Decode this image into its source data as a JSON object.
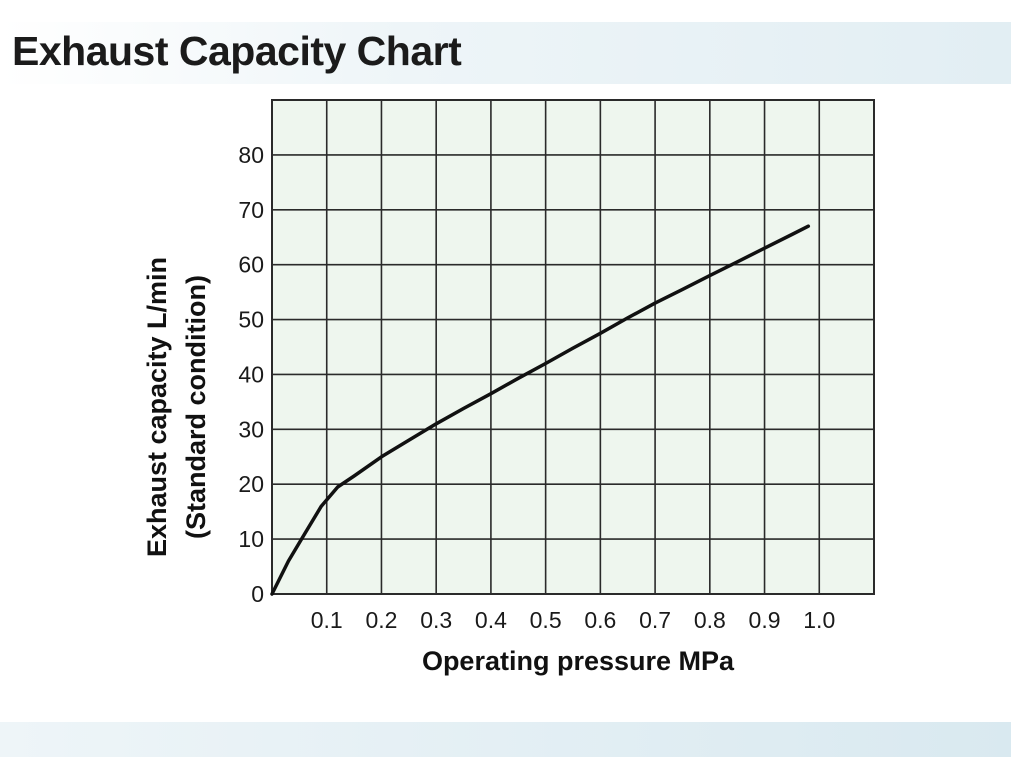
{
  "page": {
    "title": "Exhaust Capacity Chart"
  },
  "colors": {
    "plot_background": "#eef6ee",
    "grid": "#2a2a2a",
    "curve": "#111111"
  },
  "chart_data": {
    "type": "line",
    "title": "Exhaust Capacity Chart",
    "xlabel": "Operating pressure MPa",
    "ylabel": "Exhaust capacity L/min",
    "ylabel_sub": "(Standard condition)",
    "xlim": [
      0,
      1.1
    ],
    "ylim": [
      0,
      90
    ],
    "x_ticks": [
      0.1,
      0.2,
      0.3,
      0.4,
      0.5,
      0.6,
      0.7,
      0.8,
      0.9,
      1.0
    ],
    "x_tick_labels": [
      "0.1",
      "0.2",
      "0.3",
      "0.4",
      "0.5",
      "0.6",
      "0.7",
      "0.8",
      "0.9",
      "1.0"
    ],
    "y_ticks": [
      0,
      10,
      20,
      30,
      40,
      50,
      60,
      70,
      80
    ],
    "y_tick_labels": [
      "0",
      "10",
      "20",
      "30",
      "40",
      "50",
      "60",
      "70",
      "80"
    ],
    "grid": true,
    "legend": "none",
    "series": [
      {
        "x": [
          0,
          0.03,
          0.06,
          0.09,
          0.12,
          0.15,
          0.2,
          0.25,
          0.3,
          0.35,
          0.4,
          0.45,
          0.5,
          0.55,
          0.6,
          0.65,
          0.7,
          0.75,
          0.8,
          0.85,
          0.9,
          0.95,
          0.98
        ],
        "y": [
          0,
          6,
          11,
          16,
          19.5,
          21.5,
          25,
          28,
          31,
          33.8,
          36.5,
          39.3,
          42,
          44.8,
          47.5,
          50.3,
          53,
          55.5,
          58,
          60.5,
          63,
          65.5,
          67
        ]
      }
    ]
  }
}
